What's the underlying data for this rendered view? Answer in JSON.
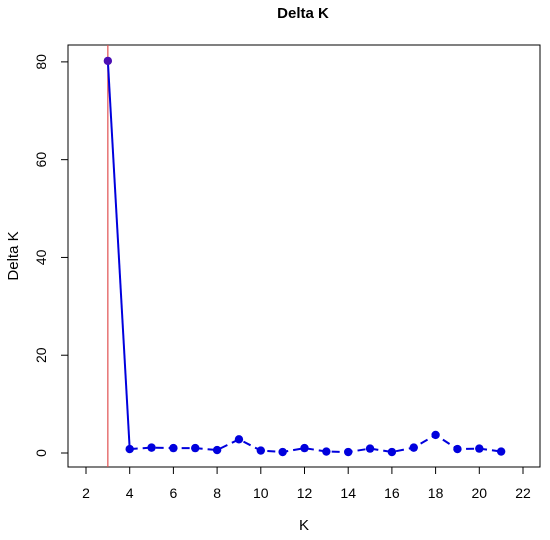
{
  "chart_data": {
    "type": "line",
    "title": "Delta K",
    "xlabel": "K",
    "ylabel": "Delta K",
    "xlim": [
      2,
      22
    ],
    "ylim": [
      0,
      80
    ],
    "x_ticks": [
      "2",
      "4",
      "6",
      "8",
      "10",
      "12",
      "14",
      "16",
      "18",
      "20",
      "22"
    ],
    "y_ticks": [
      "0",
      "20",
      "40",
      "60",
      "80"
    ],
    "grid": false,
    "legend": "none",
    "series": [
      {
        "x": [
          3,
          4,
          5,
          6,
          7,
          8,
          9,
          10,
          11,
          12,
          13,
          14,
          15,
          16,
          17,
          18,
          19,
          20,
          21
        ],
        "values": [
          80.2,
          0.8,
          1.1,
          1.0,
          1.0,
          0.6,
          2.8,
          0.5,
          0.2,
          1.0,
          0.3,
          0.2,
          0.9,
          0.2,
          1.1,
          3.7,
          0.8,
          0.9,
          0.3
        ],
        "color": "#0000dd",
        "first_point_color": "#4b0fb4",
        "style": "first segment solid, remaining segments dashed"
      }
    ],
    "vertical_line": {
      "x": 3,
      "color": "#e05050"
    }
  }
}
